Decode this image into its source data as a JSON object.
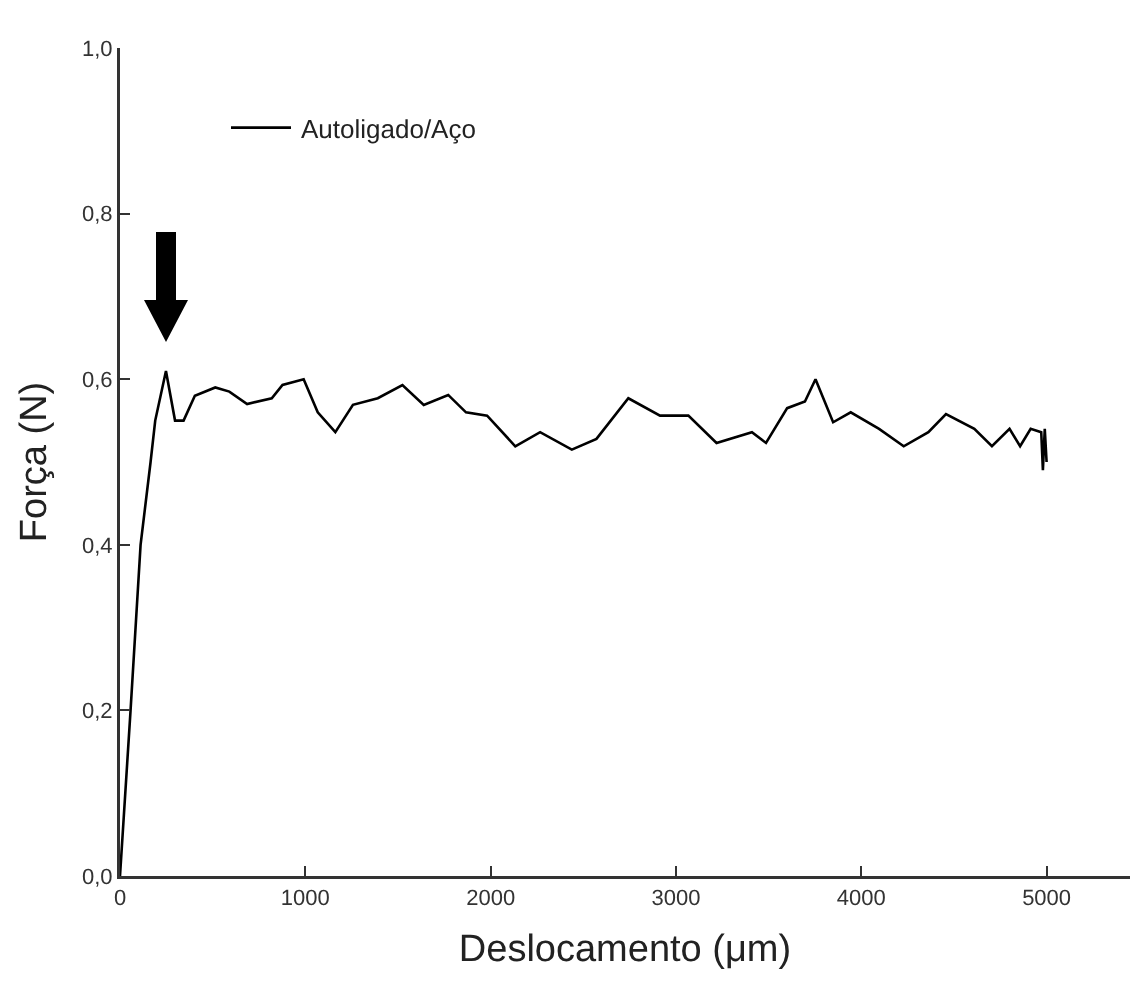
{
  "chart_data": {
    "type": "line",
    "xlabel": "Deslocamento (μm)",
    "ylabel": "Força (N)",
    "xlim": [
      0,
      5450
    ],
    "xticks": [
      0,
      1000,
      2000,
      3000,
      4000,
      5000
    ],
    "ylim": [
      0,
      1.0
    ],
    "yticks": [
      {
        "value": 0,
        "label": "0,0"
      },
      {
        "value": 0.2,
        "label": "0,2"
      },
      {
        "value": 0.4,
        "label": "0,4"
      },
      {
        "value": 0.6,
        "label": "0,6"
      },
      {
        "value": 0.8,
        "label": "0,8"
      },
      {
        "value": 1.0,
        "label": "1,0"
      }
    ],
    "grid": false,
    "legend": "top left",
    "marker": "none",
    "line_style": "solid",
    "series": [
      {
        "name": "Autoligado/Aço",
        "color": "#000000",
        "x": [
          0,
          57,
          111,
          165,
          190,
          248,
          297,
          343,
          404,
          514,
          590,
          686,
          819,
          877,
          991,
          1067,
          1162,
          1257,
          1391,
          1524,
          1639,
          1771,
          1867,
          1981,
          2133,
          2267,
          2438,
          2571,
          2743,
          2914,
          3067,
          3219,
          3410,
          3486,
          3600,
          3696,
          3753,
          3848,
          3943,
          4096,
          4229,
          4362,
          4457,
          4610,
          4705,
          4800,
          4857,
          4914,
          4971,
          4980,
          4990,
          5000
        ],
        "values": [
          0,
          0.2,
          0.4,
          0.5,
          0.55,
          0.61,
          0.55,
          0.55,
          0.58,
          0.59,
          0.585,
          0.57,
          0.577,
          0.593,
          0.6,
          0.56,
          0.536,
          0.569,
          0.577,
          0.593,
          0.569,
          0.581,
          0.56,
          0.556,
          0.519,
          0.536,
          0.515,
          0.528,
          0.577,
          0.556,
          0.556,
          0.523,
          0.536,
          0.523,
          0.565,
          0.573,
          0.6,
          0.548,
          0.56,
          0.54,
          0.519,
          0.536,
          0.558,
          0.54,
          0.519,
          0.54,
          0.519,
          0.54,
          0.536,
          0.49,
          0.54,
          0.5
        ]
      }
    ]
  }
}
